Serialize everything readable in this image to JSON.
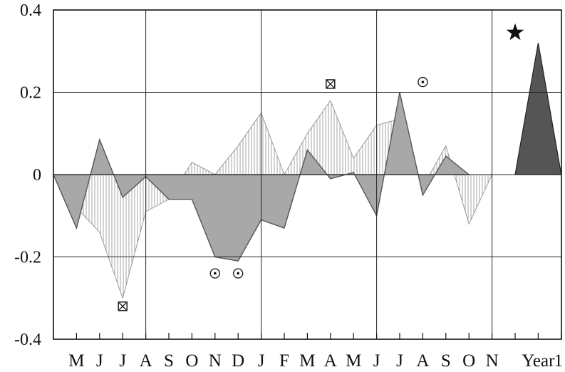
{
  "chart_data": {
    "type": "area",
    "title": "",
    "xlabel": "",
    "ylabel": "",
    "ylim": [
      -0.4,
      0.4
    ],
    "grid": true,
    "y_ticks": [
      "0.4",
      "0.2",
      "0",
      "-0.2",
      "-0.4"
    ],
    "y_tick_values": [
      0.4,
      0.2,
      0,
      -0.2,
      -0.4
    ],
    "month_labels": [
      "M",
      "J",
      "J",
      "A",
      "S",
      "O",
      "N",
      "D",
      "J",
      "F",
      "M",
      "A",
      "M",
      "J",
      "J",
      "A",
      "S",
      "O",
      "N"
    ],
    "year_label": "Year",
    "trailing_label": "1",
    "series": [
      {
        "values": [
          0,
          -0.13,
          0.085,
          -0.055,
          -0.005,
          -0.06,
          -0.06,
          -0.2,
          -0.21,
          -0.11,
          -0.13,
          0.06,
          -0.01,
          0.005,
          -0.1,
          0.2,
          -0.05,
          0.045,
          0
        ],
        "style": "solid-gray"
      },
      {
        "values": [
          0,
          -0.08,
          -0.14,
          -0.3,
          -0.09,
          -0.06,
          0.03,
          0,
          0.07,
          0.15,
          0,
          0.1,
          0.18,
          0.04,
          0.12,
          0.135,
          -0.03,
          0.07,
          -0.12,
          0
        ],
        "style": "vertical-hatch"
      },
      {
        "values": [
          0.32
        ],
        "style": "dark-peak"
      }
    ],
    "markers": [
      {
        "symbol": "boxed-x",
        "month_index": 3,
        "value": -0.32
      },
      {
        "symbol": "dot-circle",
        "month_index": 7,
        "value": -0.24
      },
      {
        "symbol": "dot-circle",
        "month_index": 8,
        "value": -0.24
      },
      {
        "symbol": "boxed-x",
        "month_index": 12,
        "value": 0.22
      },
      {
        "symbol": "dot-circle",
        "month_index": 16,
        "value": 0.225
      },
      {
        "symbol": "star",
        "month_index": 20,
        "value": 0.345
      }
    ],
    "colors": {
      "solid": "#a8a8a8",
      "hatch": "#9a9a9a",
      "peak": "#555555",
      "grid": "#222222"
    }
  }
}
